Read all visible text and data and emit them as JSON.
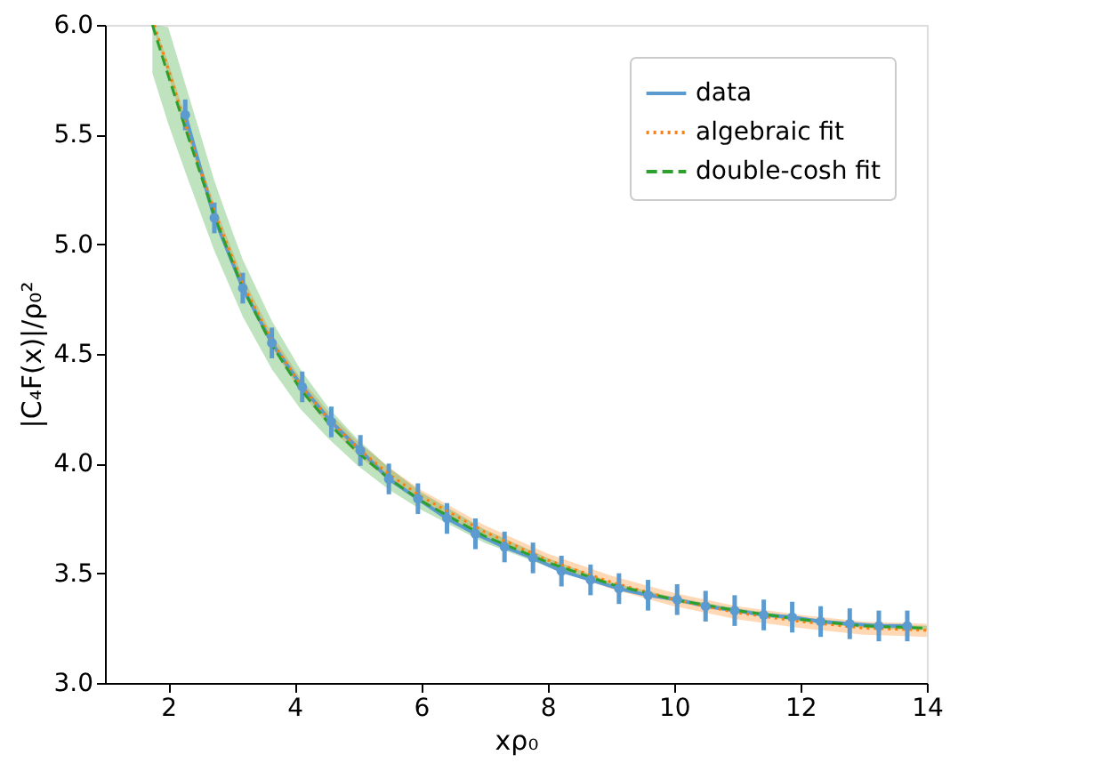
{
  "chart_data": {
    "type": "line",
    "xlabel": "xρ₀",
    "ylabel": "|C₄F(x)|/ρ₀²",
    "xlim": [
      1,
      14
    ],
    "xticks": [
      2,
      4,
      6,
      8,
      10,
      12,
      14
    ],
    "ylim": [
      3.0,
      6.0
    ],
    "yticks": [
      {
        "value": 3.0,
        "label": "3.0"
      },
      {
        "value": 3.5,
        "label": "3.5"
      },
      {
        "value": 4.0,
        "label": "4.0"
      },
      {
        "value": 4.5,
        "label": "4.5"
      },
      {
        "value": 5.0,
        "label": "5.0"
      },
      {
        "value": 5.5,
        "label": "5.5"
      },
      {
        "value": 6.0,
        "label": "6.0"
      }
    ],
    "grid": false,
    "legend": "top right",
    "series": [
      {
        "name": "data",
        "color": "#5b9bd0",
        "marker": "circle",
        "line_style": "solid",
        "x": [
          2.27,
          2.73,
          3.18,
          3.64,
          4.12,
          4.58,
          5.04,
          5.49,
          5.95,
          6.41,
          6.86,
          7.32,
          7.77,
          8.22,
          8.68,
          9.13,
          9.59,
          10.05,
          10.5,
          10.96,
          11.42,
          11.87,
          12.32,
          12.78,
          13.24,
          13.69
        ],
        "values": [
          5.59,
          5.12,
          4.8,
          4.55,
          4.35,
          4.19,
          4.06,
          3.93,
          3.84,
          3.75,
          3.68,
          3.62,
          3.57,
          3.51,
          3.47,
          3.43,
          3.4,
          3.38,
          3.35,
          3.33,
          3.31,
          3.3,
          3.28,
          3.27,
          3.26,
          3.26
        ],
        "errors": [
          0.07,
          0.07,
          0.07,
          0.07,
          0.07,
          0.07,
          0.07,
          0.07,
          0.07,
          0.07,
          0.07,
          0.07,
          0.07,
          0.07,
          0.07,
          0.07,
          0.07,
          0.07,
          0.07,
          0.07,
          0.07,
          0.07,
          0.07,
          0.07,
          0.07,
          0.07
        ]
      },
      {
        "name": "algebraic fit",
        "color": "#ff7f0e",
        "marker": "none",
        "line_style": "dotted",
        "x": [
          1.78,
          2.0,
          2.27,
          2.5,
          2.73,
          3.0,
          3.18,
          3.64,
          4.09,
          4.55,
          5,
          5.5,
          6,
          7,
          8,
          9,
          10,
          11,
          12,
          13,
          14
        ],
        "values": [
          6.0,
          5.8,
          5.55,
          5.35,
          5.15,
          4.95,
          4.82,
          4.56,
          4.36,
          4.2,
          4.07,
          3.95,
          3.85,
          3.69,
          3.56,
          3.46,
          3.38,
          3.32,
          3.28,
          3.25,
          3.24
        ],
        "lower": [
          5.97,
          5.77,
          5.52,
          5.32,
          5.12,
          4.92,
          4.79,
          4.53,
          4.33,
          4.17,
          4.04,
          3.92,
          3.82,
          3.66,
          3.53,
          3.43,
          3.35,
          3.29,
          3.25,
          3.22,
          3.21
        ],
        "upper": [
          6.0,
          5.83,
          5.58,
          5.38,
          5.18,
          4.98,
          4.85,
          4.59,
          4.39,
          4.23,
          4.1,
          3.98,
          3.88,
          3.72,
          3.59,
          3.49,
          3.41,
          3.35,
          3.31,
          3.28,
          3.27
        ]
      },
      {
        "name": "double-cosh fit",
        "color": "#2ca02c",
        "marker": "none",
        "line_style": "dashed",
        "x": [
          1.75,
          2.0,
          2.27,
          2.5,
          2.73,
          3.0,
          3.18,
          3.64,
          4.09,
          4.55,
          5,
          5.5,
          6,
          7,
          8,
          9,
          10,
          11,
          12,
          13,
          14
        ],
        "values": [
          6.0,
          5.77,
          5.53,
          5.33,
          5.13,
          4.93,
          4.8,
          4.54,
          4.34,
          4.18,
          4.05,
          3.93,
          3.83,
          3.67,
          3.55,
          3.45,
          3.38,
          3.33,
          3.29,
          3.26,
          3.25
        ],
        "lower": [
          5.78,
          5.55,
          5.33,
          5.15,
          4.97,
          4.79,
          4.67,
          4.43,
          4.25,
          4.11,
          3.99,
          3.88,
          3.79,
          3.64,
          3.53,
          3.44,
          3.37,
          3.32,
          3.28,
          3.25,
          3.24
        ],
        "upper": [
          6.0,
          5.99,
          5.73,
          5.51,
          5.29,
          5.07,
          4.93,
          4.65,
          4.43,
          4.25,
          4.11,
          3.98,
          3.87,
          3.7,
          3.57,
          3.46,
          3.39,
          3.34,
          3.3,
          3.27,
          3.26
        ]
      }
    ]
  }
}
